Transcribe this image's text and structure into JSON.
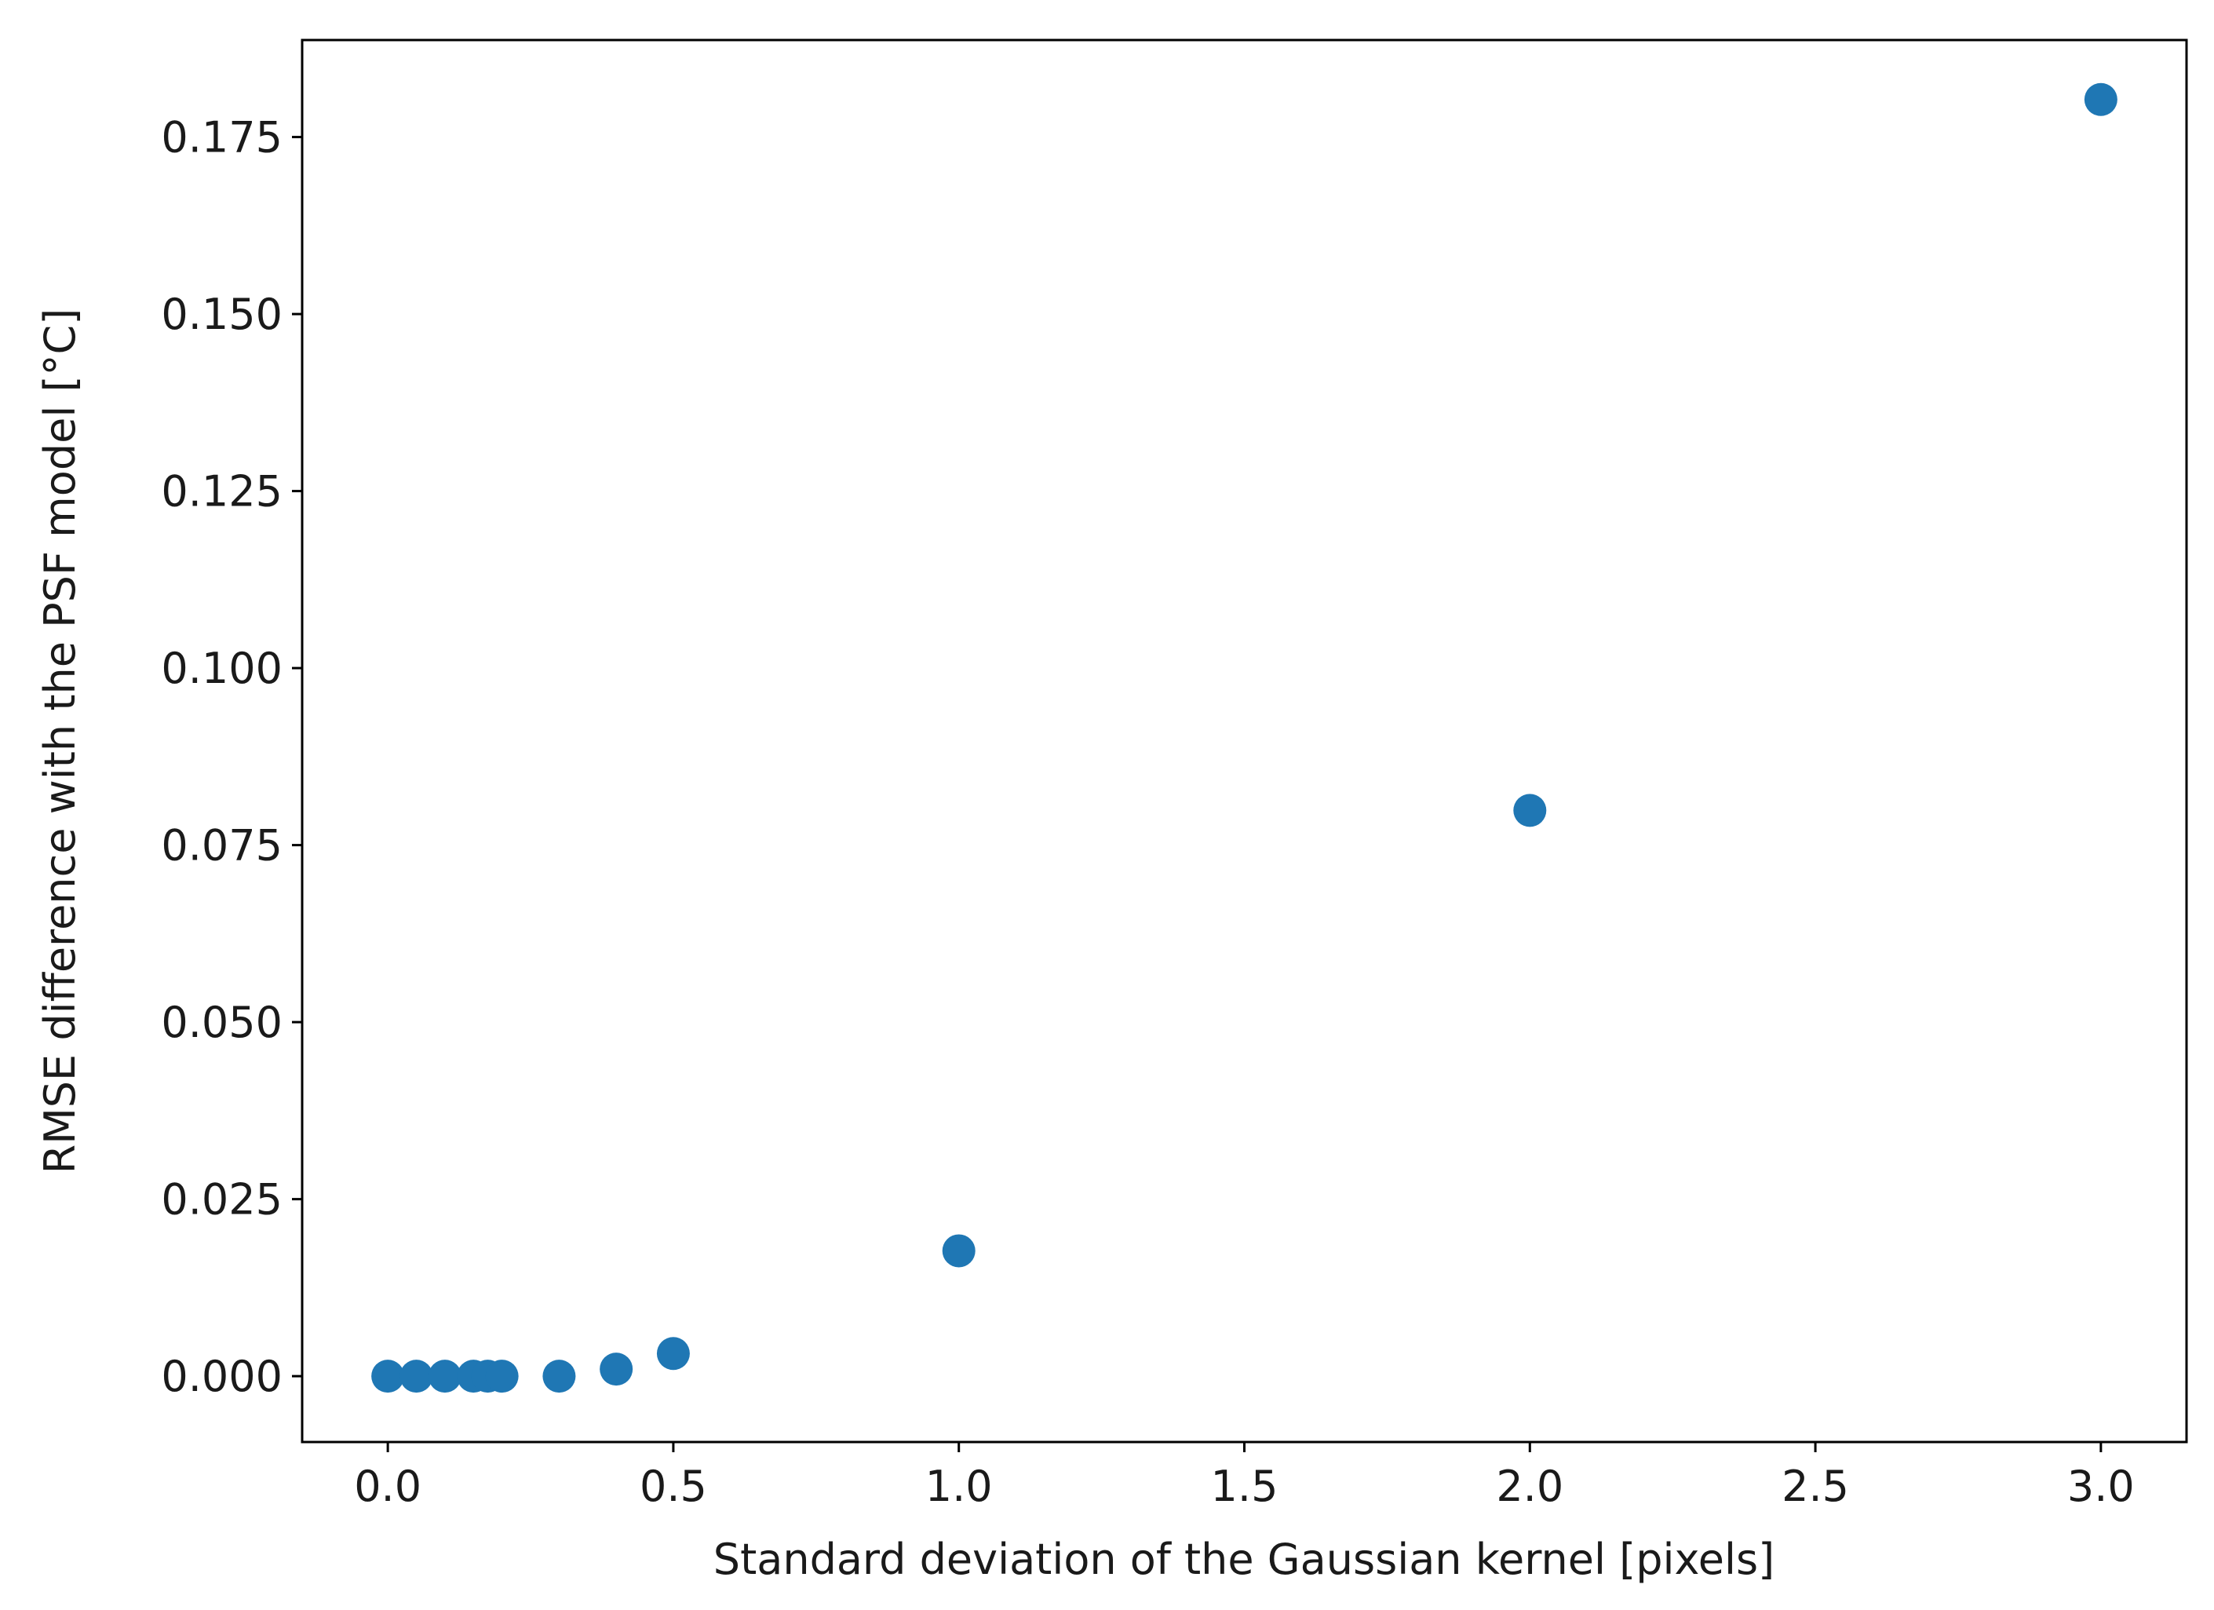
{
  "chart_data": {
    "type": "scatter",
    "x_label": "Standard deviation of the Gaussian kernel [pixels]",
    "y_label": "RMSE difference with the PSF model [°C]",
    "x": [
      0,
      0.05,
      0.1,
      0.15,
      0.175,
      0.2,
      0.3,
      0.4,
      0.5,
      1.0,
      2.0,
      3.0
    ],
    "values": [
      0,
      0,
      0,
      0,
      0,
      0,
      0,
      0.001,
      0.0032,
      0.0177,
      0.0799,
      0.1803
    ],
    "color": "#1f77b4",
    "xlim": [
      -0.15,
      3.15
    ],
    "ylim": [
      -0.0093,
      0.1887
    ],
    "xticks": [
      {
        "value": 0,
        "label": "0.0"
      },
      {
        "value": 0.5,
        "label": "0.5"
      },
      {
        "value": 1,
        "label": "1.0"
      },
      {
        "value": 1.5,
        "label": "1.5"
      },
      {
        "value": 2,
        "label": "2.0"
      },
      {
        "value": 2.5,
        "label": "2.5"
      },
      {
        "value": 3,
        "label": "3.0"
      }
    ],
    "yticks": [
      {
        "value": 0,
        "label": "0.000"
      },
      {
        "value": 0.025,
        "label": "0.025"
      },
      {
        "value": 0.05,
        "label": "0.050"
      },
      {
        "value": 0.075,
        "label": "0.075"
      },
      {
        "value": 0.1,
        "label": "0.100"
      },
      {
        "value": 0.125,
        "label": "0.125"
      },
      {
        "value": 0.15,
        "label": "0.150"
      },
      {
        "value": 0.175,
        "label": "0.175"
      }
    ]
  }
}
